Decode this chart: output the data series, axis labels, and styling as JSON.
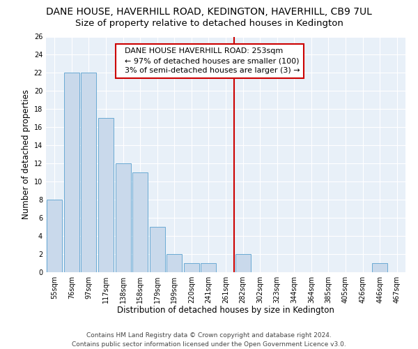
{
  "title": "DANE HOUSE, HAVERHILL ROAD, KEDINGTON, HAVERHILL, CB9 7UL",
  "subtitle": "Size of property relative to detached houses in Kedington",
  "xlabel": "Distribution of detached houses by size in Kedington",
  "ylabel": "Number of detached properties",
  "bar_labels": [
    "55sqm",
    "76sqm",
    "97sqm",
    "117sqm",
    "138sqm",
    "158sqm",
    "179sqm",
    "199sqm",
    "220sqm",
    "241sqm",
    "261sqm",
    "282sqm",
    "302sqm",
    "323sqm",
    "344sqm",
    "364sqm",
    "385sqm",
    "405sqm",
    "426sqm",
    "446sqm",
    "467sqm"
  ],
  "bar_values": [
    8,
    22,
    22,
    17,
    12,
    11,
    5,
    2,
    1,
    1,
    0,
    2,
    0,
    0,
    0,
    0,
    0,
    0,
    0,
    1,
    0
  ],
  "bar_color": "#c9d9eb",
  "bar_edge_color": "#6aaad4",
  "vline_x": 10.5,
  "vline_color": "#cc0000",
  "annotation_line1": "  DANE HOUSE HAVERHILL ROAD: 253sqm",
  "annotation_line2": "  ← 97% of detached houses are smaller (100)",
  "annotation_line3": "  3% of semi-detached houses are larger (3) →",
  "annotation_box_color": "#ffffff",
  "annotation_box_edge": "#cc0000",
  "ylim": [
    0,
    26
  ],
  "yticks": [
    0,
    2,
    4,
    6,
    8,
    10,
    12,
    14,
    16,
    18,
    20,
    22,
    24,
    26
  ],
  "footer": "Contains HM Land Registry data © Crown copyright and database right 2024.\nContains public sector information licensed under the Open Government Licence v3.0.",
  "bg_color": "#e8f0f8",
  "grid_color": "#ffffff",
  "fig_bg_color": "#ffffff",
  "title_fontsize": 10,
  "subtitle_fontsize": 9.5,
  "axis_label_fontsize": 8.5,
  "tick_fontsize": 7,
  "annotation_fontsize": 8,
  "footer_fontsize": 6.5
}
